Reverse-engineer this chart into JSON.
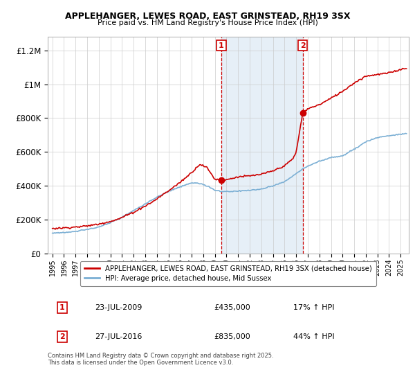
{
  "title_line1": "APPLEHANGER, LEWES ROAD, EAST GRINSTEAD, RH19 3SX",
  "title_line2": "Price paid vs. HM Land Registry's House Price Index (HPI)",
  "ylabel_ticks": [
    "£0",
    "£200K",
    "£400K",
    "£600K",
    "£800K",
    "£1M",
    "£1.2M"
  ],
  "ytick_values": [
    0,
    200000,
    400000,
    600000,
    800000,
    1000000,
    1200000
  ],
  "ylim": [
    0,
    1280000
  ],
  "xlim_start": 1994.6,
  "xlim_end": 2025.7,
  "hpi_color": "#7bafd4",
  "price_color": "#cc0000",
  "marker1_x": 2009.55,
  "marker2_x": 2016.57,
  "marker1_price": 435000,
  "marker2_price": 835000,
  "legend_text1": "APPLEHANGER, LEWES ROAD, EAST GRINSTEAD, RH19 3SX (detached house)",
  "legend_text2": "HPI: Average price, detached house, Mid Sussex",
  "footnote": "Contains HM Land Registry data © Crown copyright and database right 2025.\nThis data is licensed under the Open Government Licence v3.0.",
  "table_row1": [
    "1",
    "23-JUL-2009",
    "£435,000",
    "17% ↑ HPI"
  ],
  "table_row2": [
    "2",
    "27-JUL-2016",
    "£835,000",
    "44% ↑ HPI"
  ],
  "background_shading_color": "#dce9f5",
  "grid_color": "#cccccc"
}
